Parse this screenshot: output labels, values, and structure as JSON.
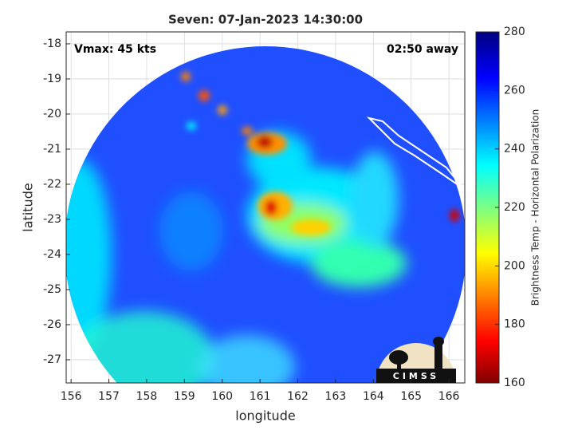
{
  "chart_data": {
    "type": "image",
    "title": "Seven: 07-Jan-2023 14:30:00",
    "annotations": [
      "Vmax: 45 kts",
      "02:50 away"
    ],
    "xlabel": "longitude",
    "ylabel": "latitude",
    "xlim": [
      155.87,
      166.42
    ],
    "ylim": [
      -27.66,
      -17.66
    ],
    "xticks": [
      156,
      157,
      158,
      159,
      160,
      161,
      162,
      163,
      164,
      165,
      166
    ],
    "yticks": [
      -18,
      -19,
      -20,
      -21,
      -22,
      -23,
      -24,
      -25,
      -26,
      -27
    ],
    "grid": true,
    "colorbar": {
      "label": "Brightness Temp - Horizontal Polarization",
      "clim": [
        160,
        280
      ],
      "ticks": [
        160,
        180,
        200,
        220,
        240,
        260,
        280
      ]
    },
    "logo": "CIMSS"
  }
}
